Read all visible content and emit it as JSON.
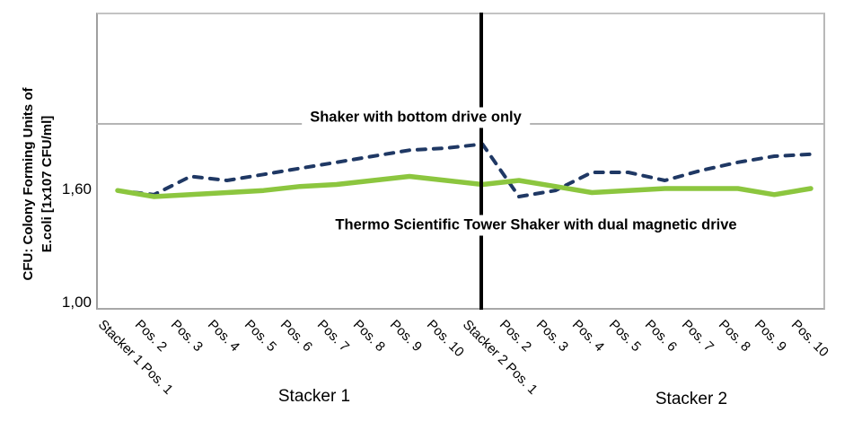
{
  "colors": {
    "navy": "#1f3864",
    "green": "#8cc63f",
    "grid": "#b5b5b5",
    "divider": "#000000"
  },
  "y_axis": {
    "title_line1": "CFU: Colony Forming Units of",
    "title_line2": "E.coli [1x107 CFU/ml]",
    "ticks": [
      {
        "label": "1,60",
        "value": 1.6
      },
      {
        "label": "1,00",
        "value": 1.0
      }
    ]
  },
  "x_axis": {
    "group_labels": [
      "Stacker 1",
      "Stacker 2"
    ]
  },
  "annotations": {
    "series_bottom_drive": "Shaker with bottom drive only",
    "series_tower_shaker": "Thermo Scientific Tower Shaker with dual magnetic drive"
  },
  "chart_data": {
    "type": "line",
    "title": "",
    "ylabel": "CFU: Colony Forming Units of E.coli [1x107 CFU/ml]",
    "xlabel": "",
    "ylim": [
      1.0,
      2.47
    ],
    "yticks": [
      1.0,
      1.6
    ],
    "unlabeled_gridline_value": 1.92,
    "grid": "single horizontal gridline; black vertical divider between Stacker 1 and Stacker 2",
    "legend_position": "inline text annotations",
    "categories": [
      "Stacker 1 Pos. 1",
      "Pos. 2",
      "Pos. 3",
      "Pos. 4",
      "Pos. 5",
      "Pos. 6",
      "Pos. 7",
      "Pos. 8",
      "Pos. 9",
      "Pos. 10",
      "Stacker 2 Pos. 1",
      "Pos. 2",
      "Pos. 3",
      "Pos. 4",
      "Pos. 5",
      "Pos. 6",
      "Pos. 7",
      "Pos. 8",
      "Pos. 9",
      "Pos. 10"
    ],
    "groups": [
      {
        "label": "Stacker 1",
        "categories_span": [
          0,
          9
        ]
      },
      {
        "label": "Stacker 2",
        "categories_span": [
          10,
          19
        ]
      }
    ],
    "series": [
      {
        "name": "Shaker with bottom drive only",
        "style": "dashed",
        "color": "#1f3864",
        "values": [
          1.59,
          1.57,
          1.66,
          1.64,
          1.67,
          1.7,
          1.73,
          1.76,
          1.79,
          1.8,
          1.82,
          1.56,
          1.59,
          1.68,
          1.68,
          1.64,
          1.69,
          1.73,
          1.76,
          1.77
        ]
      },
      {
        "name": "Thermo Scientific Tower Shaker with dual magnetic drive",
        "style": "solid",
        "color": "#8cc63f",
        "values": [
          1.59,
          1.56,
          1.57,
          1.58,
          1.59,
          1.61,
          1.62,
          1.64,
          1.66,
          1.64,
          1.62,
          1.64,
          1.61,
          1.58,
          1.59,
          1.6,
          1.6,
          1.6,
          1.57,
          1.6
        ]
      }
    ]
  }
}
